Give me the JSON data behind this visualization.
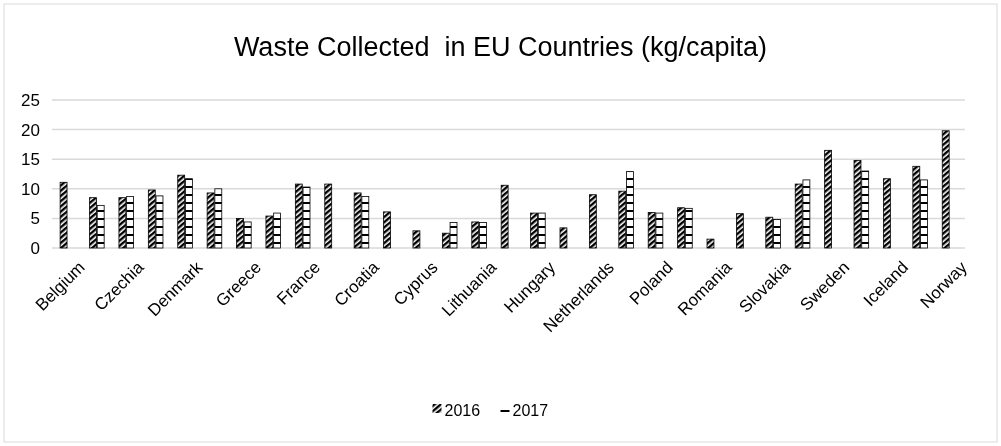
{
  "chart_data": {
    "type": "bar",
    "title": "Waste Collected  in EU Countries (kg/capita)",
    "categories": [
      "Belgium",
      null,
      "Czechia",
      null,
      "Denmark",
      null,
      "Greece",
      null,
      "France",
      null,
      "Croatia",
      null,
      "Cyprus",
      null,
      "Lithuania",
      null,
      "Hungary",
      null,
      "Netherlands",
      null,
      "Poland",
      null,
      "Romania",
      null,
      "Slovakia",
      null,
      "Sweden",
      null,
      "Iceland",
      null,
      "Norway"
    ],
    "series": [
      {
        "name": "2016",
        "color": "#000000",
        "values": [
          11.1,
          8.5,
          8.5,
          9.8,
          12.3,
          9.3,
          5.0,
          5.4,
          10.8,
          10.8,
          9.3,
          6.1,
          2.9,
          2.5,
          4.4,
          10.6,
          5.9,
          3.4,
          9.0,
          9.6,
          6.0,
          6.8,
          1.5,
          5.8,
          5.2,
          10.8,
          16.5,
          14.8,
          11.7,
          13.8,
          19.8
        ]
      },
      {
        "name": "2017",
        "color": "#000000",
        "values": [
          null,
          7.2,
          8.7,
          8.8,
          11.7,
          10.0,
          4.4,
          5.9,
          10.3,
          null,
          8.7,
          null,
          null,
          4.3,
          4.3,
          null,
          5.9,
          null,
          null,
          12.9,
          5.9,
          6.7,
          null,
          null,
          4.8,
          11.5,
          null,
          13.0,
          null,
          11.5,
          null
        ]
      }
    ],
    "ylim": [
      0,
      25
    ],
    "yticks": [
      0,
      5,
      10,
      15,
      20,
      25
    ],
    "grid": "y",
    "legend": "bottom"
  }
}
